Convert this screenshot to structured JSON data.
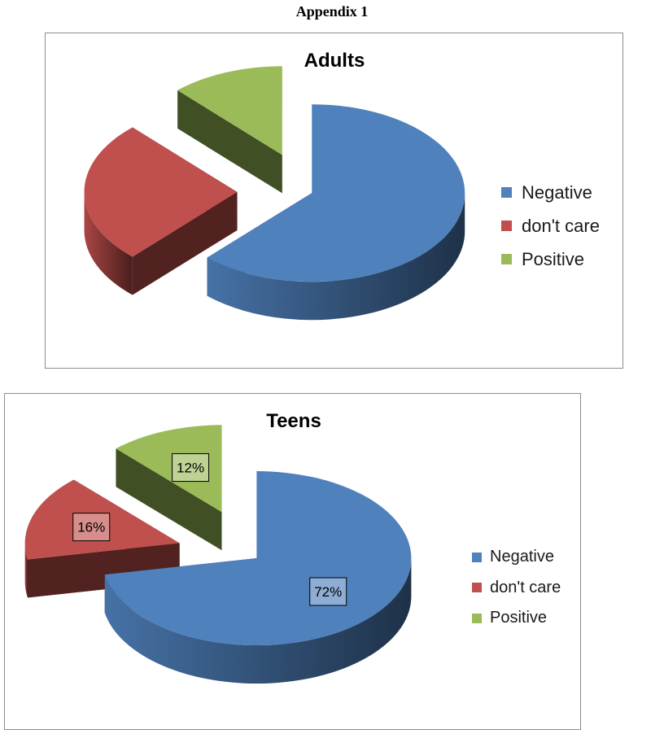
{
  "document": {
    "heading": "Appendix 1"
  },
  "colors": {
    "Negative": "#4f81bd",
    "don't care": "#c0504d",
    "Positive": "#9bbb59"
  },
  "chart_data": [
    {
      "type": "pie",
      "style": "3d-exploded",
      "title": "Adults",
      "categories": [
        "Negative",
        "don't care",
        "Positive"
      ],
      "values": [
        62,
        26,
        12
      ],
      "data_labels": [],
      "legend": {
        "position": "right",
        "entries": [
          "Negative",
          "don't care",
          "Positive"
        ]
      }
    },
    {
      "type": "pie",
      "style": "3d-exploded",
      "title": "Teens",
      "categories": [
        "Negative",
        "don't care",
        "Positive"
      ],
      "values": [
        72,
        16,
        12
      ],
      "data_labels": [
        "72%",
        "16%",
        "12%"
      ],
      "legend": {
        "position": "right",
        "entries": [
          "Negative",
          "don't care",
          "Positive"
        ]
      }
    }
  ]
}
